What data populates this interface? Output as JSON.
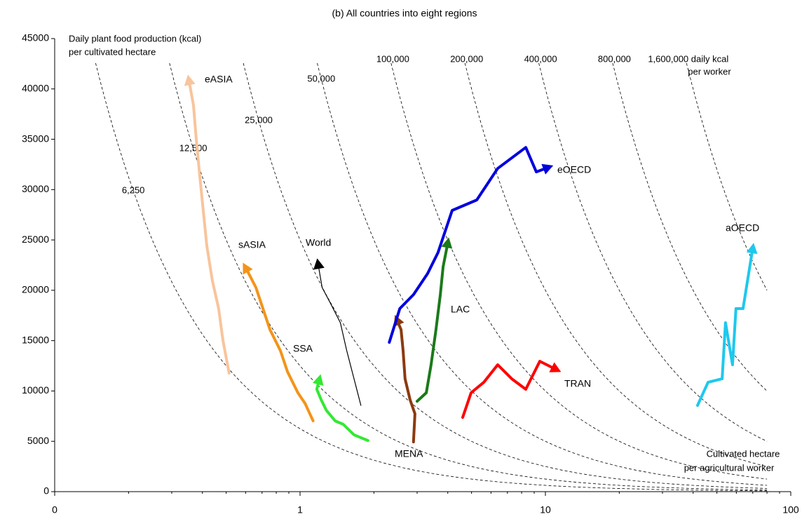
{
  "chart_data": {
    "type": "line",
    "title": "(b) All countries into eight regions",
    "y_label": [
      "Daily plant food production (kcal)",
      "per cultivated hectare"
    ],
    "x_label": [
      "Cultivated hectare",
      "per agricultural worker"
    ],
    "log_x": true,
    "xlim": [
      0.1,
      100
    ],
    "xticks": [
      {
        "value": 0.1,
        "label": "0"
      },
      1,
      10,
      100
    ],
    "ylim": [
      0,
      45000
    ],
    "yticks": [
      0,
      5000,
      10000,
      15000,
      20000,
      25000,
      30000,
      35000,
      40000,
      45000
    ],
    "isolines": [
      {
        "value": 6250,
        "label": "6,250"
      },
      {
        "value": 12500,
        "label": "12,500"
      },
      {
        "value": 25000,
        "label": "25,000"
      },
      {
        "value": 50000,
        "label": "50,000"
      },
      {
        "value": 100000,
        "label": "100,000"
      },
      {
        "value": 200000,
        "label": "200,000"
      },
      {
        "value": 400000,
        "label": "400,000"
      },
      {
        "value": 800000,
        "label": "800,000"
      },
      {
        "value": 1600000,
        "label": "1,600,000 daily kcal"
      }
    ],
    "isoline_note": "per worker",
    "series": [
      {
        "name": "eASIA",
        "color": "#f8c49c",
        "width": 4,
        "x": [
          0.514,
          0.485,
          0.466,
          0.439,
          0.417,
          0.403,
          0.39,
          0.378,
          0.368,
          0.354
        ],
        "y": [
          11770,
          15040,
          18180,
          20960,
          24440,
          27930,
          31410,
          34890,
          38370,
          40600
        ]
      },
      {
        "name": "sASIA",
        "color": "#f39419",
        "width": 4,
        "x": [
          1.13,
          1.048,
          0.98,
          0.889,
          0.832,
          0.754,
          0.706,
          0.661,
          0.618,
          0.607
        ],
        "y": [
          7030,
          8770,
          9820,
          11910,
          14000,
          16090,
          18180,
          20270,
          21660,
          22010
        ]
      },
      {
        "name": "SSA",
        "color": "#33e833",
        "width": 4,
        "x": [
          1.89,
          1.66,
          1.5,
          1.39,
          1.28,
          1.22,
          1.17,
          1.19
        ],
        "y": [
          5080,
          5640,
          6690,
          7030,
          8080,
          9120,
          10170,
          10860
        ]
      },
      {
        "name": "World",
        "color": "#000000",
        "width": 1.2,
        "x": [
          1.77,
          1.66,
          1.55,
          1.46,
          1.32,
          1.23,
          1.19
        ],
        "y": [
          8570,
          11210,
          14000,
          16780,
          18870,
          20270,
          22350
        ]
      },
      {
        "name": "MENA",
        "color": "#8b3a0f",
        "width": 4,
        "x": [
          2.9,
          2.94,
          2.81,
          2.68,
          2.63,
          2.58,
          2.51
        ],
        "y": [
          4940,
          7730,
          9120,
          11210,
          14000,
          16090,
          16780
        ]
      },
      {
        "name": "LAC",
        "color": "#1a7a1a",
        "width": 4,
        "x": [
          3.0,
          3.27,
          3.42,
          3.58,
          3.73,
          3.83,
          3.98
        ],
        "y": [
          8980,
          9820,
          12600,
          16090,
          19570,
          22350,
          24440
        ]
      },
      {
        "name": "eOECD",
        "color": "#0000dd",
        "width": 4,
        "x": [
          2.31,
          2.55,
          2.9,
          3.31,
          3.65,
          4.17,
          5.25,
          6.39,
          8.32,
          9.18,
          10.0
        ],
        "y": [
          14830,
          18180,
          19570,
          21660,
          23750,
          27930,
          28970,
          32100,
          34190,
          31760,
          32100
        ]
      },
      {
        "name": "TRAN",
        "color": "#ff0000",
        "width": 4,
        "x": [
          4.6,
          4.98,
          5.61,
          6.39,
          7.29,
          8.32,
          9.49,
          10.8
        ],
        "y": [
          7380,
          9820,
          10860,
          12600,
          11210,
          10170,
          12950,
          12260
        ]
      },
      {
        "name": "aOECD",
        "color": "#1ec8ee",
        "width": 4,
        "x": [
          41.7,
          46.0,
          52.5,
          54.2,
          57.9,
          59.8,
          63.9,
          69.7
        ],
        "y": [
          8570,
          10860,
          11210,
          16780,
          12600,
          18180,
          18180,
          23890
        ]
      }
    ]
  }
}
